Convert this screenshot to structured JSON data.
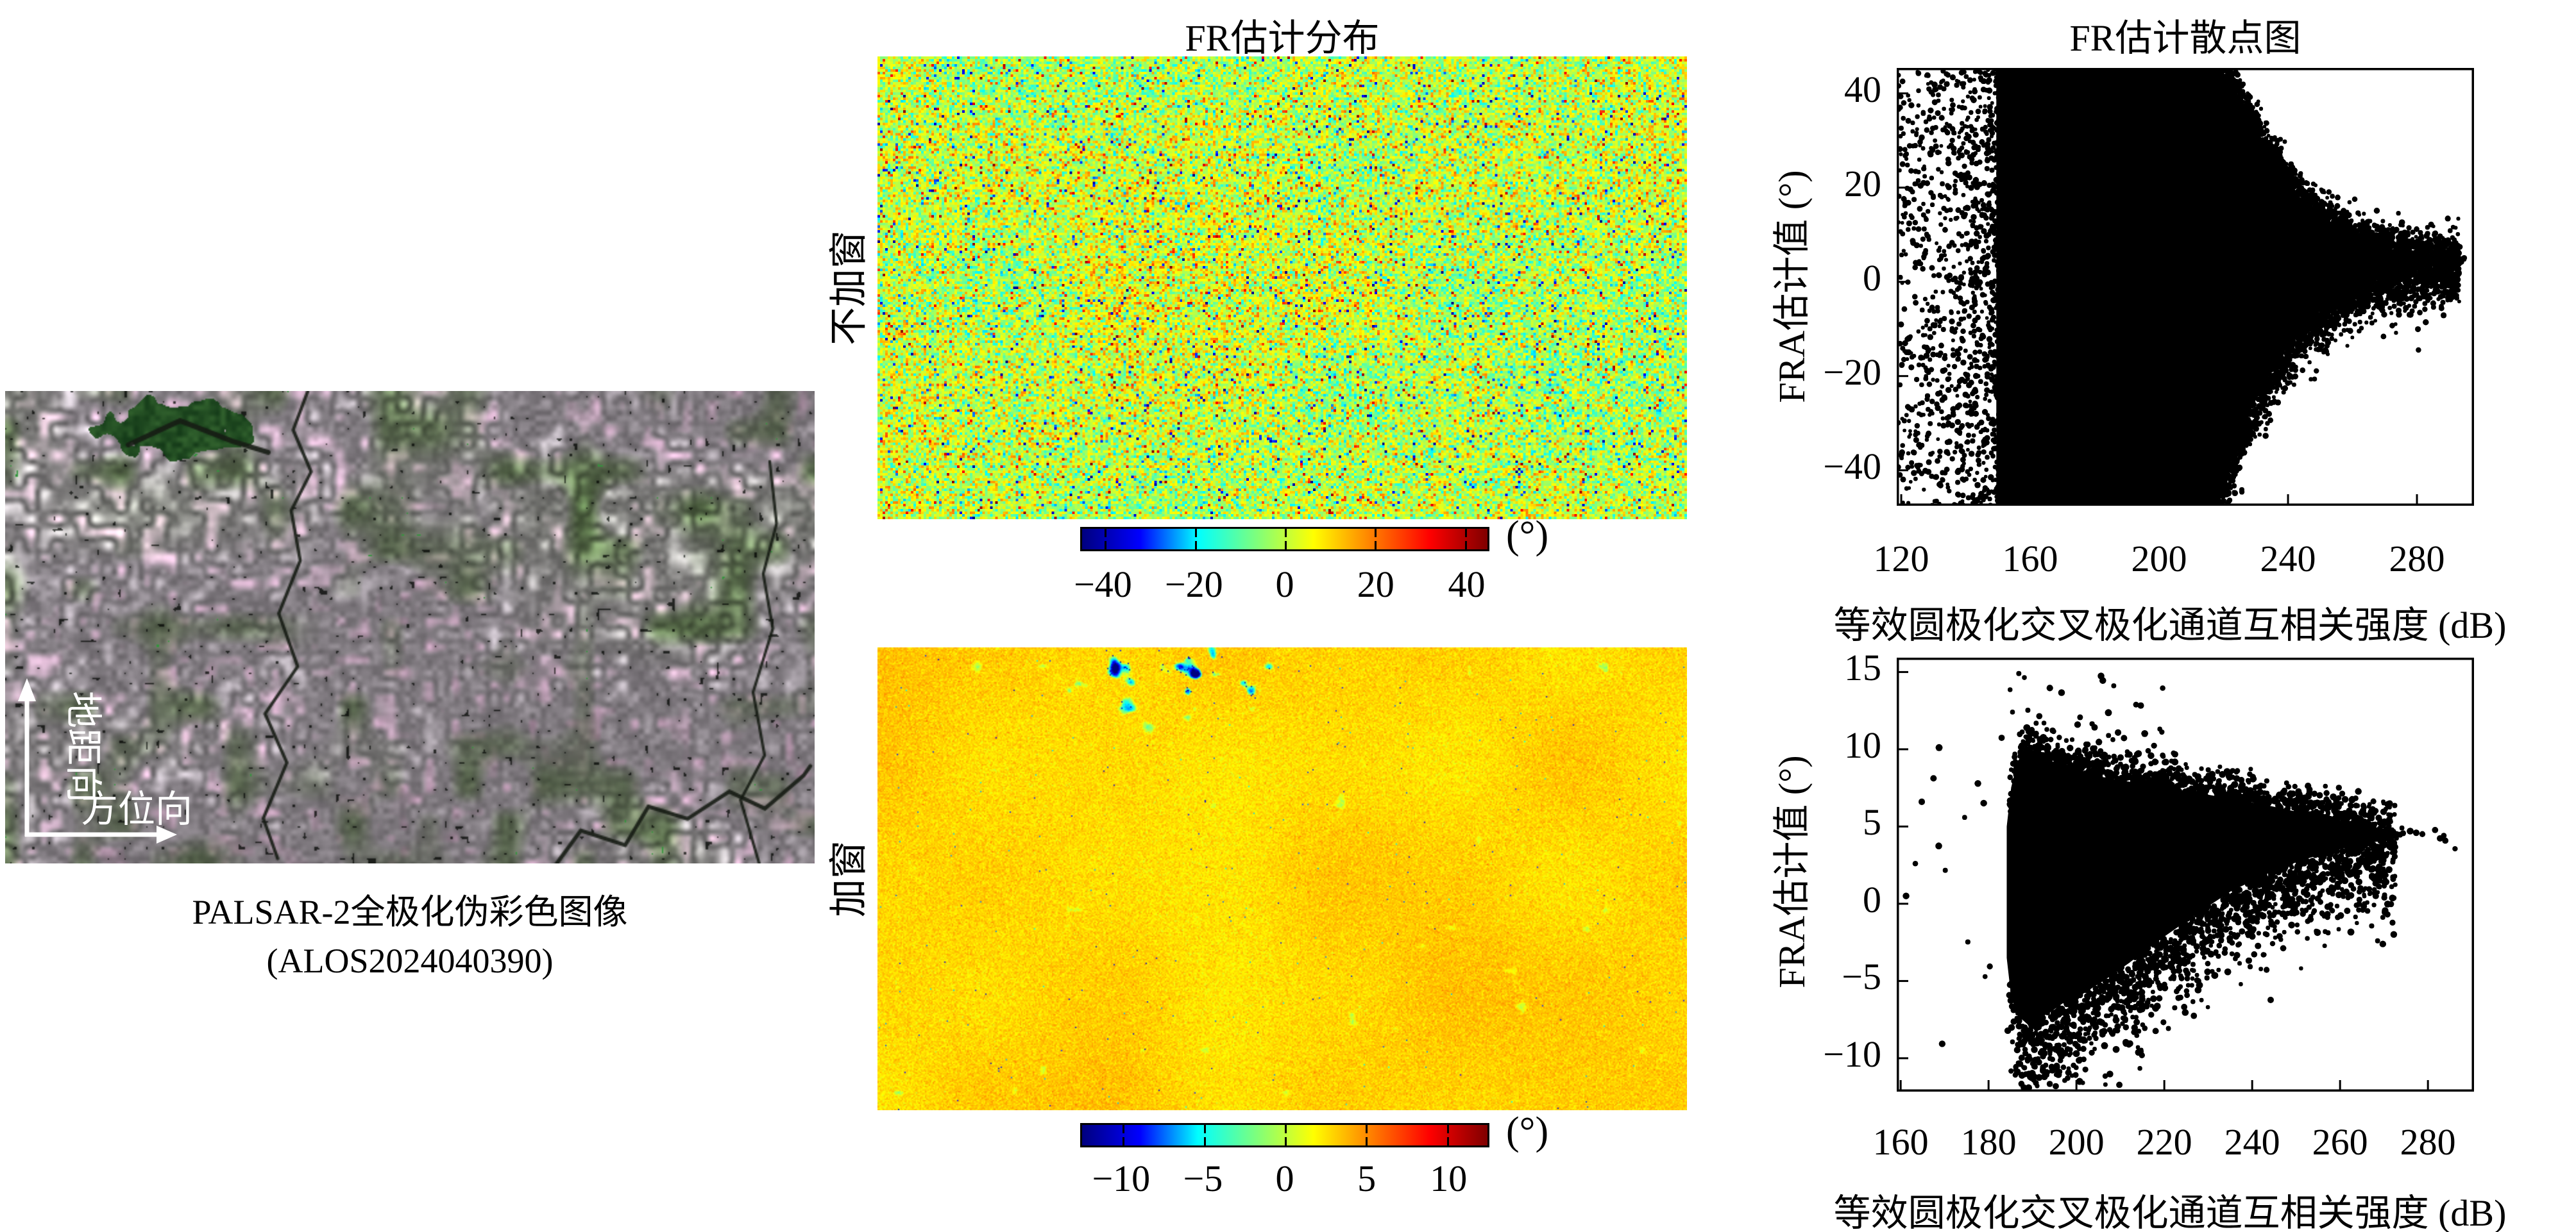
{
  "left_panel": {
    "caption_line1": "PALSAR-2全极化伪彩色图像",
    "caption_line2": "(ALOS2024040390)",
    "arrows": {
      "vertical_label": "地距向",
      "horizontal_label": "方位向"
    }
  },
  "middle_panel": {
    "title": "FR估计分布",
    "rows": [
      {
        "label": "不加窗",
        "colorbar_unit": "(°)",
        "colorbar_ticks": [
          -40,
          -20,
          0,
          20,
          40
        ],
        "colorbar_range": [
          -45,
          45
        ]
      },
      {
        "label": "加窗",
        "colorbar_unit": "(°)",
        "colorbar_ticks": [
          -10,
          -5,
          0,
          5,
          10
        ],
        "colorbar_range": [
          -12.5,
          12.5
        ]
      }
    ]
  },
  "right_panel": {
    "title": "FR估计散点图",
    "plots": [
      {
        "xlabel": "等效圆极化交叉极化通道互相关强度 (dB)",
        "ylabel": "FRA估计值 (°)",
        "xticks": [
          120,
          160,
          200,
          240,
          280
        ],
        "yticks": [
          40,
          20,
          0,
          -20,
          -40
        ]
      },
      {
        "xlabel": "等效圆极化交叉极化通道互相关强度 (dB)",
        "ylabel": "FRA估计值 (°)",
        "xticks": [
          160,
          180,
          200,
          220,
          240,
          260,
          280
        ],
        "yticks": [
          15,
          10,
          5,
          0,
          -5,
          -10
        ]
      }
    ]
  },
  "colors": {
    "jet_stops": [
      "#00007f",
      "#0000ff",
      "#00ffff",
      "#7dff7d",
      "#ffff00",
      "#ff7f00",
      "#ff0000",
      "#7f0000"
    ],
    "marker": "#000000",
    "arrow": "#ffffff",
    "text": "#000000"
  },
  "chart_data": [
    {
      "id": "fr_map_unwindowed",
      "type": "heatmap",
      "row_label": "不加窗",
      "colormap": "jet",
      "value_range_deg": [
        -45,
        45
      ],
      "colorbar_ticks_deg": [
        -40,
        -20,
        0,
        20,
        40
      ],
      "colorbar_unit": "(°)",
      "appearance": {
        "mean_deg": 6,
        "noise_sigma_deg": 8,
        "outlier_fraction": 0.07,
        "base_color": "#a8e046",
        "speckle_colors": [
          "#00c8d2",
          "#1040a0",
          "#f0f000",
          "#e06010",
          "#b01000"
        ]
      }
    },
    {
      "id": "fr_map_windowed",
      "type": "heatmap",
      "row_label": "加窗",
      "colormap": "jet",
      "value_range_deg": [
        -12.5,
        12.5
      ],
      "colorbar_ticks_deg": [
        -10,
        -5,
        0,
        5,
        10
      ],
      "colorbar_unit": "(°)",
      "appearance": {
        "mean_deg": 4.2,
        "noise_sigma_deg": 0.6,
        "river_dip_deg": -8,
        "base_color": "#eef000",
        "river_color": "#35e0b0"
      }
    },
    {
      "id": "fr_scatter_unwindowed",
      "type": "scatter",
      "title": "FR估计散点图",
      "xlabel": "等效圆极化交叉极化通道互相关强度 (dB)",
      "ylabel": "FRA估计值 (°)",
      "xlim": [
        118.6,
        297.7
      ],
      "ylim": [
        -47.5,
        45.4
      ],
      "xticks": [
        120,
        160,
        200,
        240,
        280
      ],
      "yticks": [
        40,
        20,
        0,
        -20,
        -40
      ],
      "marker": {
        "color": "#000000",
        "radius_px": 4.0
      },
      "dense_region": {
        "top_edge": [
          [
            150,
            45.4
          ],
          [
            218,
            45.4
          ],
          [
            223,
            41
          ],
          [
            228,
            34
          ],
          [
            233,
            28
          ],
          [
            238,
            22.5
          ],
          [
            243,
            18
          ],
          [
            248,
            14.5
          ],
          [
            253,
            11.8
          ],
          [
            258,
            9.8
          ],
          [
            264,
            8.2
          ],
          [
            270,
            7.0
          ],
          [
            276,
            6.1
          ],
          [
            282,
            5.4
          ],
          [
            288,
            4.9
          ],
          [
            292,
            4.6
          ]
        ],
        "bottom_edge": [
          [
            150,
            -47.5
          ],
          [
            218,
            -47.5
          ],
          [
            223,
            -35
          ],
          [
            228,
            -27
          ],
          [
            233,
            -20.5
          ],
          [
            238,
            -15
          ],
          [
            243,
            -10.5
          ],
          [
            248,
            -6.8
          ],
          [
            253,
            -4.0
          ],
          [
            258,
            -1.8
          ],
          [
            264,
            0.2
          ],
          [
            270,
            1.6
          ],
          [
            276,
            2.6
          ],
          [
            282,
            3.3
          ],
          [
            288,
            3.8
          ],
          [
            292,
            4.1
          ]
        ]
      },
      "left_cloud": {
        "x_range": [
          119,
          152
        ],
        "y_range": [
          -47.5,
          45.4
        ],
        "count": 1500
      },
      "halo": {
        "x_range": [
          216,
          293
        ],
        "sigma_above_deg": 2.5,
        "sigma_below_deg": 4.0,
        "count_above": 1400,
        "count_below": 1800
      },
      "tail": {
        "x_range": [
          288,
          295
        ],
        "y_deg": 4.4,
        "sigma_deg": 0.5,
        "count": 26
      },
      "converge_point_db_deg": [
        291,
        4.5
      ]
    },
    {
      "id": "fr_scatter_windowed",
      "type": "scatter",
      "title": "FR估计散点图",
      "xlabel": "等效圆极化交叉极化通道互相关强度 (dB)",
      "ylabel": "FRA估计值 (°)",
      "xlim": [
        159.1,
        290.5
      ],
      "ylim": [
        -12.2,
        15.9
      ],
      "xticks": [
        160,
        180,
        200,
        220,
        240,
        260,
        280
      ],
      "yticks": [
        15,
        10,
        5,
        0,
        -5,
        -10
      ],
      "marker": {
        "color": "#000000",
        "radius_px": 4.6
      },
      "dense_region": {
        "top_edge": [
          [
            184.5,
            5
          ],
          [
            185.5,
            7.5
          ],
          [
            187,
            9.2
          ],
          [
            189,
            9.9
          ],
          [
            191.5,
            9.4
          ],
          [
            194,
            9.0
          ],
          [
            197,
            8.7
          ],
          [
            201,
            8.4
          ],
          [
            206,
            8.1
          ],
          [
            212,
            7.8
          ],
          [
            219,
            7.5
          ],
          [
            227,
            7.1
          ],
          [
            235,
            6.7
          ],
          [
            243,
            6.3
          ],
          [
            251,
            5.8
          ],
          [
            258,
            5.4
          ],
          [
            264,
            5.05
          ],
          [
            269,
            4.8
          ],
          [
            272.5,
            4.65
          ]
        ],
        "bottom_edge": [
          [
            184.5,
            -3.5
          ],
          [
            185.5,
            -6.0
          ],
          [
            187,
            -7.2
          ],
          [
            189,
            -7.7
          ],
          [
            191.5,
            -7.3
          ],
          [
            194,
            -6.9
          ],
          [
            197,
            -6.3
          ],
          [
            201,
            -5.8
          ],
          [
            206,
            -4.9
          ],
          [
            212,
            -3.7
          ],
          [
            219,
            -2.2
          ],
          [
            227,
            -0.6
          ],
          [
            235,
            0.9
          ],
          [
            243,
            2.0
          ],
          [
            251,
            2.9
          ],
          [
            258,
            3.5
          ],
          [
            264,
            3.9
          ],
          [
            269,
            4.15
          ],
          [
            272.5,
            4.35
          ]
        ]
      },
      "halo": {
        "x_range": [
          184.5,
          272.5
        ],
        "sigma_above_deg": 0.9,
        "sigma_below_deg": 2.4,
        "count_above": 900,
        "count_below": 1600
      },
      "upper_outliers": {
        "x_range": [
          184,
          220
        ],
        "y_range": [
          9.5,
          15.2
        ],
        "count": 48
      },
      "lower_outliers": {
        "x_range": [
          183,
          215
        ],
        "y_range": [
          -12.4,
          -8
        ],
        "count": 26
      },
      "left_sparse": {
        "x_range": [
          161,
          184
        ],
        "y_range": [
          -9.5,
          11
        ],
        "count": 15
      },
      "tail": {
        "x_range": [
          272,
          287
        ],
        "y_deg": 4.45,
        "sigma_deg": 0.25,
        "count": 14
      },
      "converge_point_db_deg": [
        270,
        4.5
      ]
    }
  ]
}
